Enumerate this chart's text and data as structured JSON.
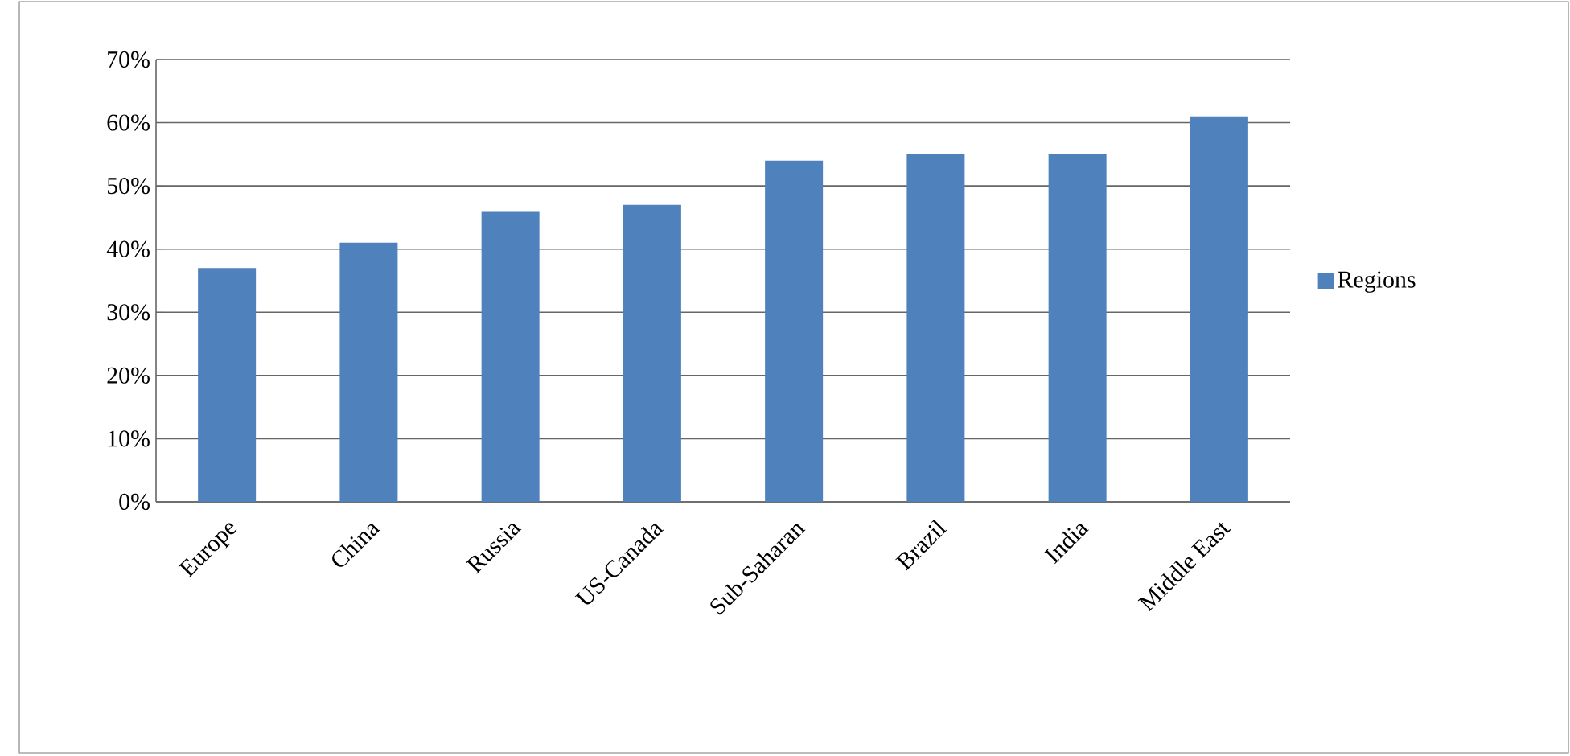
{
  "chart_data": {
    "type": "bar",
    "categories": [
      "Europe",
      "China",
      "Russia",
      "US-Canada",
      "Sub-Saharan",
      "Brazil",
      "India",
      "Middle East"
    ],
    "series": [
      {
        "name": "Regions",
        "color": "#4f81bd",
        "values": [
          37,
          41,
          46,
          47,
          54,
          55,
          55,
          61
        ]
      }
    ],
    "ylim": [
      0,
      70
    ],
    "yticks": [
      {
        "value": 0,
        "label": "0%"
      },
      {
        "value": 10,
        "label": "10%"
      },
      {
        "value": 20,
        "label": "20%"
      },
      {
        "value": 30,
        "label": "30%"
      },
      {
        "value": 40,
        "label": "40%"
      },
      {
        "value": 50,
        "label": "50%"
      },
      {
        "value": 60,
        "label": "60%"
      },
      {
        "value": 70,
        "label": "70%"
      }
    ],
    "grid": "y",
    "legend": "right"
  }
}
